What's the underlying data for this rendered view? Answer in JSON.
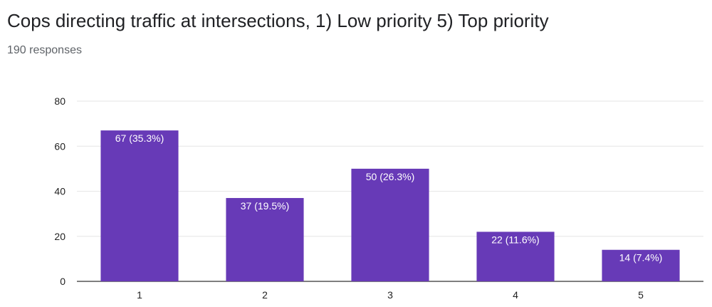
{
  "header": {
    "title": "Cops directing traffic at intersections, 1) Low priority 5) Top priority",
    "responses": "190 responses"
  },
  "chart_data": {
    "type": "bar",
    "categories": [
      "1",
      "2",
      "3",
      "4",
      "5"
    ],
    "values": [
      67,
      37,
      50,
      22,
      14
    ],
    "labels": [
      "67 (35.3%)",
      "37 (19.5%)",
      "50 (26.3%)",
      "22 (11.6%)",
      "14 (7.4%)"
    ],
    "ylim": [
      0,
      80
    ],
    "yticks": [
      0,
      20,
      40,
      60,
      80
    ],
    "grid": true,
    "bar_color": "#673ab7",
    "xlabel": "",
    "ylabel": ""
  }
}
